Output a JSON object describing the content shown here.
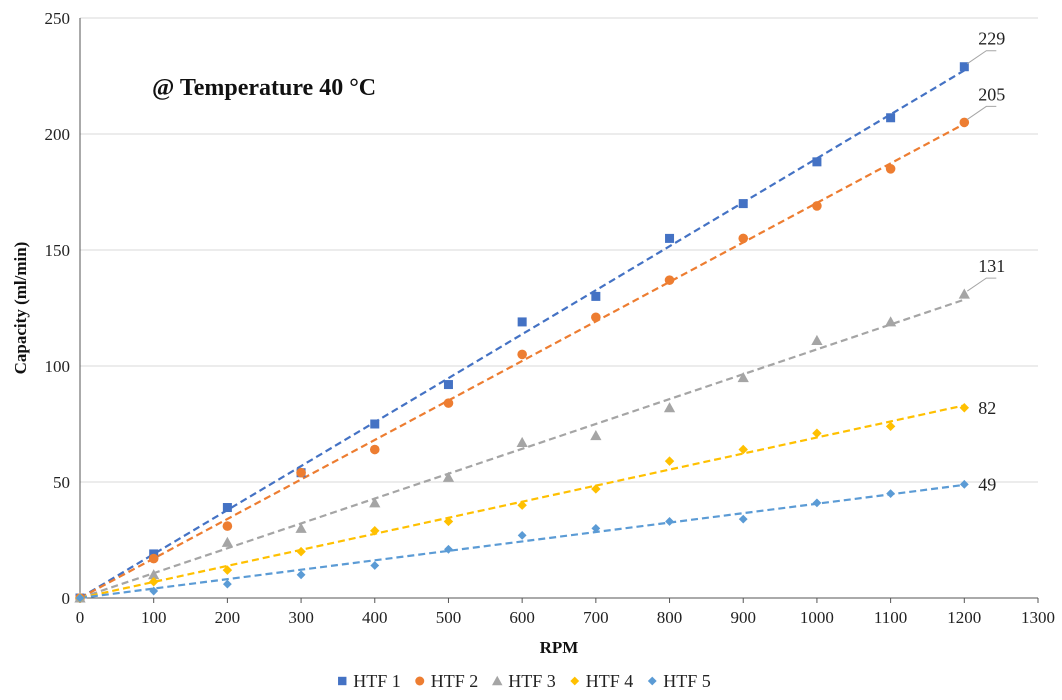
{
  "chart_data": {
    "type": "scatter",
    "title": "",
    "annotation": "@ Temperature 40 °C",
    "xlabel": "RPM",
    "ylabel": "Capacity (ml/min)",
    "xlim": [
      0,
      1300
    ],
    "ylim": [
      0,
      250
    ],
    "x_ticks": [
      0,
      100,
      200,
      300,
      400,
      500,
      600,
      700,
      800,
      900,
      1000,
      1100,
      1200,
      1300
    ],
    "y_ticks": [
      0,
      50,
      100,
      150,
      200,
      250
    ],
    "grid": "horizontal",
    "legend_position": "bottom",
    "trendlines": "linear, dashed",
    "x": [
      0,
      100,
      200,
      300,
      400,
      500,
      600,
      700,
      800,
      900,
      1000,
      1100,
      1200
    ],
    "series": [
      {
        "name": "HTF 1",
        "color": "#4472C4",
        "marker": "square",
        "values": [
          0,
          19,
          39,
          54,
          75,
          92,
          119,
          130,
          155,
          170,
          188,
          207,
          229
        ],
        "end_label": "229"
      },
      {
        "name": "HTF 2",
        "color": "#ED7D31",
        "marker": "circle",
        "values": [
          0,
          17,
          31,
          54,
          64,
          84,
          105,
          121,
          137,
          155,
          169,
          185,
          205
        ],
        "end_label": "205"
      },
      {
        "name": "HTF 3",
        "color": "#A5A5A5",
        "marker": "triangle",
        "values": [
          0,
          10,
          24,
          30,
          41,
          52,
          67,
          70,
          82,
          95,
          111,
          119,
          131
        ],
        "end_label": "131"
      },
      {
        "name": "HTF 4",
        "color": "#FFC000",
        "marker": "diamond",
        "values": [
          0,
          7,
          12,
          20,
          29,
          33,
          40,
          47,
          59,
          64,
          71,
          74,
          82
        ],
        "end_label": "82"
      },
      {
        "name": "HTF 5",
        "color": "#5B9BD5",
        "marker": "diamond",
        "values": [
          0,
          3,
          6,
          10,
          14,
          21,
          27,
          30,
          33,
          34,
          41,
          45,
          49
        ],
        "end_label": "49"
      }
    ]
  }
}
